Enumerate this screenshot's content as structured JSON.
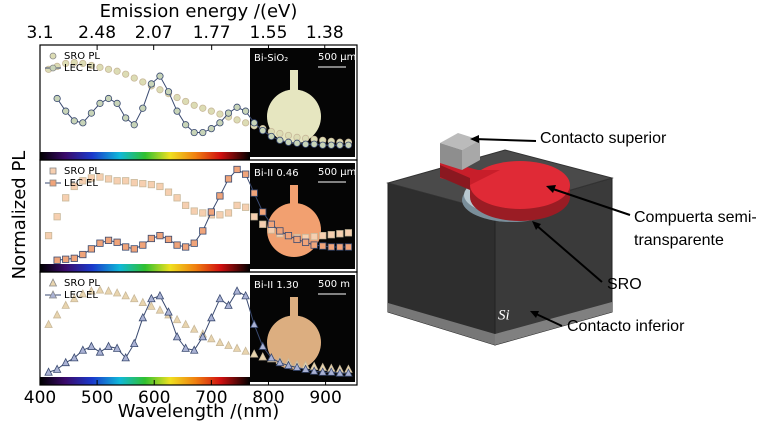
{
  "chart_data": [
    {
      "type": "line",
      "x2label": "Emission energy /(eV)",
      "x2ticks": [
        3.1,
        2.48,
        2.07,
        1.77,
        1.55,
        1.38
      ],
      "xlim": [
        400,
        955
      ],
      "ylim": [
        0,
        1.1
      ],
      "legend": "upper left",
      "inset_label": "Bi-SiO₂",
      "inset_scale": "500 μm",
      "x": [
        400,
        415,
        430,
        445,
        460,
        475,
        490,
        505,
        520,
        535,
        550,
        565,
        580,
        595,
        610,
        625,
        640,
        655,
        670,
        685,
        700,
        715,
        730,
        745,
        760,
        775,
        790,
        805,
        820,
        835,
        850,
        865,
        880,
        895,
        910,
        925,
        940
      ],
      "series": [
        {
          "name": "SRO PL",
          "color": "#dcdcb4",
          "marker": "circle",
          "line": false,
          "values": [
            null,
            0.85,
            0.88,
            0.91,
            0.92,
            0.91,
            0.89,
            0.87,
            0.85,
            0.83,
            0.8,
            0.76,
            0.72,
            0.68,
            0.64,
            0.6,
            0.56,
            0.52,
            0.48,
            0.45,
            0.42,
            0.39,
            0.36,
            0.33,
            0.3,
            0.27,
            0.24,
            0.21,
            0.19,
            0.17,
            0.15,
            0.14,
            0.13,
            0.12,
            0.11,
            0.1,
            0.1
          ]
        },
        {
          "name": "LEC EL",
          "color": "#c8d4b8",
          "marker": "circle",
          "line": true,
          "values": [
            null,
            null,
            0.55,
            0.42,
            0.32,
            0.3,
            0.4,
            0.5,
            0.55,
            0.5,
            0.35,
            0.28,
            0.45,
            0.7,
            0.78,
            0.62,
            0.42,
            0.28,
            0.2,
            0.2,
            0.24,
            0.3,
            0.4,
            0.46,
            0.42,
            0.3,
            0.22,
            0.16,
            0.12,
            0.1,
            0.09,
            0.08,
            0.08,
            0.07,
            0.07,
            0.07,
            0.07
          ]
        }
      ]
    },
    {
      "type": "line",
      "ylabel": "Normalized PL",
      "xlim": [
        400,
        955
      ],
      "ylim": [
        0,
        1.1
      ],
      "legend": "upper left",
      "inset_label": "Bi-II 0.46",
      "inset_scale": "500 μm",
      "x": [
        400,
        415,
        430,
        445,
        460,
        475,
        490,
        505,
        520,
        535,
        550,
        565,
        580,
        595,
        610,
        625,
        640,
        655,
        670,
        685,
        700,
        715,
        730,
        745,
        760,
        775,
        790,
        805,
        820,
        835,
        850,
        865,
        880,
        895,
        910,
        925,
        940
      ],
      "series": [
        {
          "name": "SRO PL",
          "color": "#f6cfb0",
          "marker": "square",
          "line": false,
          "values": [
            null,
            0.3,
            0.5,
            0.7,
            0.82,
            0.88,
            0.91,
            0.92,
            0.9,
            0.88,
            0.88,
            0.86,
            0.85,
            0.84,
            0.82,
            0.76,
            0.7,
            0.62,
            0.56,
            0.54,
            0.52,
            0.52,
            0.54,
            0.62,
            0.6,
            0.5,
            0.42,
            0.36,
            0.32,
            0.3,
            0.28,
            0.28,
            0.29,
            0.3,
            0.31,
            0.32,
            0.33
          ]
        },
        {
          "name": "LEC EL",
          "color": "#f0a47a",
          "marker": "square",
          "line": true,
          "values": [
            null,
            null,
            0.04,
            0.05,
            0.06,
            0.1,
            0.16,
            0.22,
            0.25,
            0.23,
            0.18,
            0.16,
            0.2,
            0.27,
            0.3,
            0.26,
            0.2,
            0.18,
            0.22,
            0.35,
            0.55,
            0.72,
            0.9,
            1.0,
            0.95,
            0.75,
            0.55,
            0.42,
            0.35,
            0.3,
            0.26,
            0.23,
            0.2,
            0.19,
            0.18,
            0.18,
            0.18
          ]
        }
      ]
    },
    {
      "type": "line",
      "xlabel": "Wavelength /(nm)",
      "xticks": [
        400,
        500,
        600,
        700,
        800,
        900
      ],
      "xlim": [
        400,
        955
      ],
      "ylim": [
        0,
        1.1
      ],
      "legend": "upper left",
      "inset_label": "Bi-II 1.30",
      "inset_scale": "500 m",
      "x": [
        400,
        415,
        430,
        445,
        460,
        475,
        490,
        505,
        520,
        535,
        550,
        565,
        580,
        595,
        610,
        625,
        640,
        655,
        670,
        685,
        700,
        715,
        730,
        745,
        760,
        775,
        790,
        805,
        820,
        835,
        850,
        865,
        880,
        895,
        910,
        925,
        940
      ],
      "series": [
        {
          "name": "SRO PL",
          "color": "#e8d4ae",
          "marker": "triangle",
          "line": false,
          "values": [
            null,
            0.55,
            0.65,
            0.75,
            0.82,
            0.87,
            0.9,
            0.91,
            0.9,
            0.88,
            0.85,
            0.82,
            0.78,
            0.74,
            0.7,
            0.65,
            0.6,
            0.55,
            0.5,
            0.45,
            0.4,
            0.36,
            0.33,
            0.3,
            0.27,
            0.24,
            0.21,
            0.19,
            0.17,
            0.15,
            0.13,
            0.12,
            0.11,
            0.1,
            0.09,
            0.08,
            0.08
          ]
        },
        {
          "name": "LEC EL",
          "color": "#aab2d4",
          "marker": "triangle",
          "line": true,
          "values": [
            null,
            0.05,
            0.08,
            0.15,
            0.2,
            0.28,
            0.32,
            0.26,
            0.32,
            0.3,
            0.2,
            0.35,
            0.62,
            0.82,
            0.85,
            0.68,
            0.42,
            0.3,
            0.28,
            0.42,
            0.62,
            0.82,
            0.75,
            0.9,
            0.85,
            0.55,
            0.32,
            0.2,
            0.15,
            0.12,
            0.1,
            0.08,
            0.06,
            0.05,
            0.05,
            0.04,
            0.04
          ]
        }
      ]
    }
  ],
  "diagram": {
    "labels": {
      "top_contact": "Contacto superior",
      "gate_1": "Compuerta semi-",
      "gate_2": "transparente",
      "sro": "SRO",
      "bottom_contact": "Contacto inferior",
      "substrate": "Si"
    }
  }
}
